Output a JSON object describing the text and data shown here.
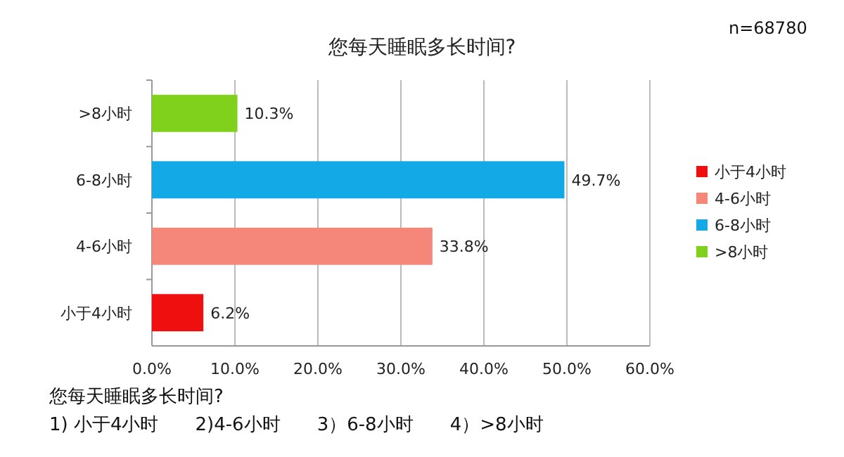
{
  "chart_data": {
    "type": "bar",
    "orientation": "horizontal",
    "stacked": true,
    "title": "您每天睡眠多长时间?",
    "categories": [
      ">8小时",
      "6-8小时",
      "4-6小时",
      "小于4小时"
    ],
    "series": [
      {
        "name": "小于4小时",
        "color": "#f00f0f",
        "values": [
          null,
          null,
          null,
          6.2
        ],
        "value_labels": [
          null,
          null,
          null,
          "6.2%"
        ]
      },
      {
        "name": "4-6小时",
        "color": "#f4877a",
        "values": [
          null,
          null,
          33.8,
          null
        ],
        "value_labels": [
          null,
          null,
          "33.8%",
          null
        ]
      },
      {
        "name": "6-8小时",
        "color": "#12a9e6",
        "values": [
          null,
          49.7,
          null,
          null
        ],
        "value_labels": [
          null,
          "49.7%",
          null,
          null
        ]
      },
      {
        "name": ">8小时",
        "color": "#7fd11b",
        "values": [
          10.3,
          null,
          null,
          null
        ],
        "value_labels": [
          "10.3%",
          null,
          null,
          null
        ]
      }
    ],
    "xlim": [
      0,
      60
    ],
    "xticks": [
      {
        "value": 0,
        "label": "0.0%"
      },
      {
        "value": 10,
        "label": "10.0%"
      },
      {
        "value": 20,
        "label": "20.0%"
      },
      {
        "value": 30,
        "label": "30.0%"
      },
      {
        "value": 40,
        "label": "40.0%"
      },
      {
        "value": 50,
        "label": "50.0%"
      },
      {
        "value": 60,
        "label": "60.0%"
      }
    ],
    "grid": "x",
    "legend": "right",
    "annotations": [
      "n=68780",
      "您每天睡眠多长时间?",
      "1) 小于4小时　　2)4-6小时　　3）6-8小时　　4）>8小时"
    ]
  }
}
